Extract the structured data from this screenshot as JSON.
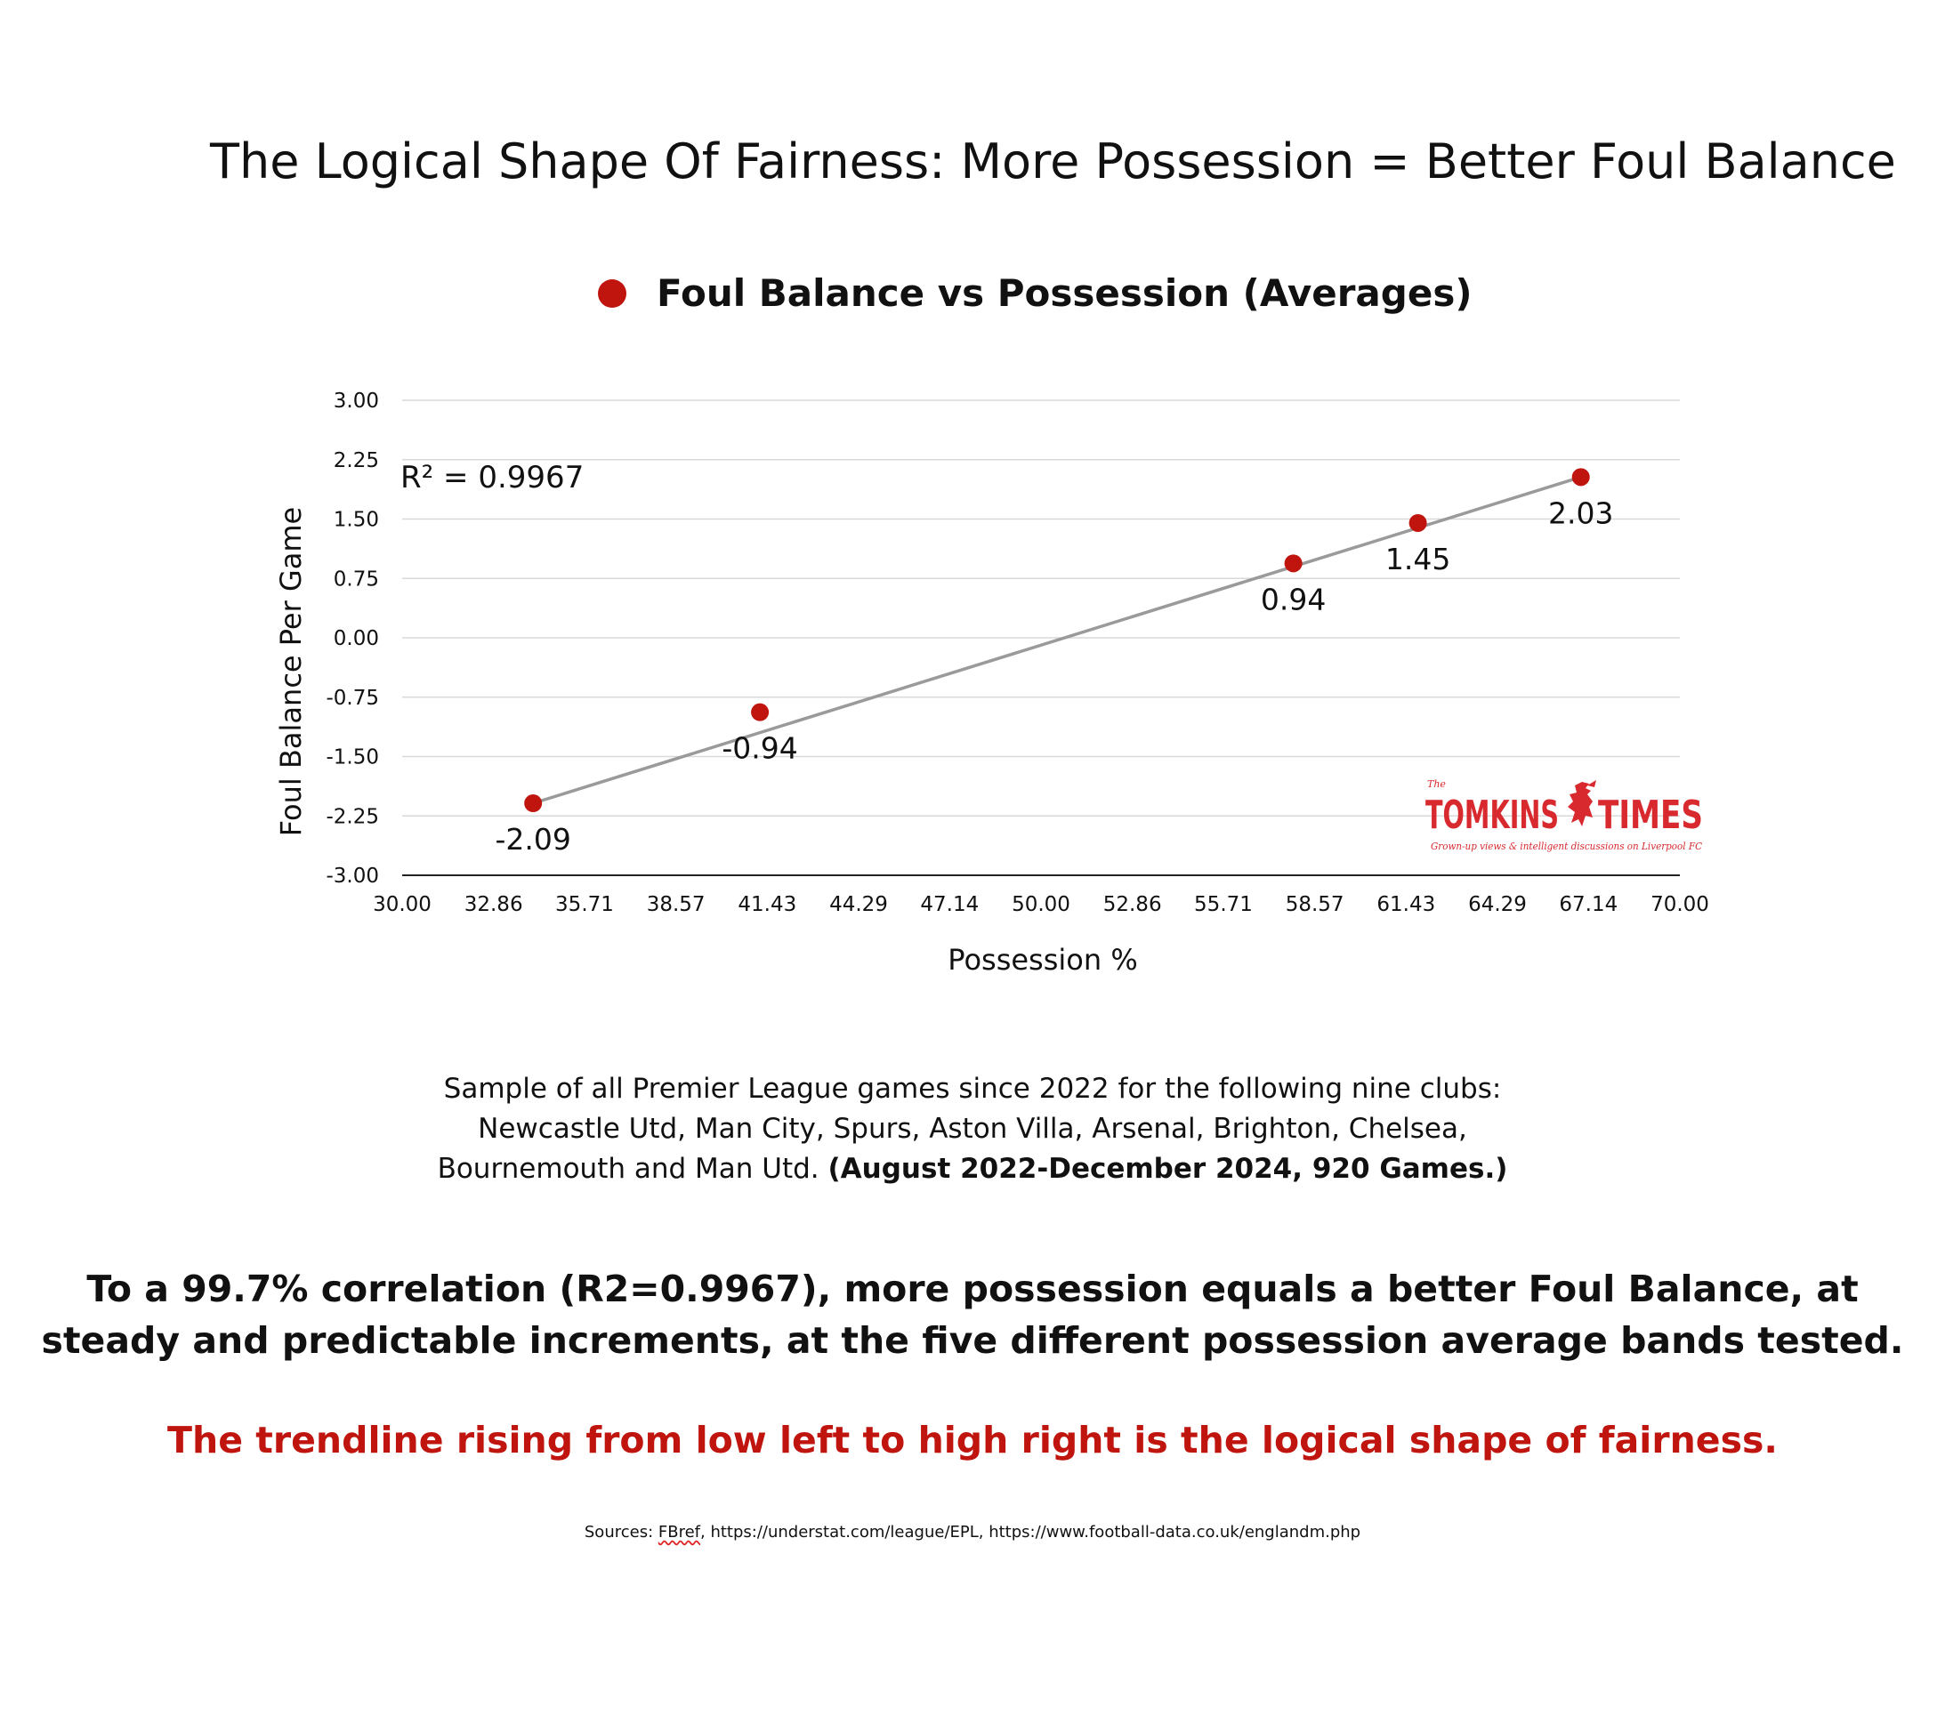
{
  "page": {
    "title": "The Logical Shape Of Fairness: More Possession = Better Foul Balance",
    "sample_line1": "Sample of all Premier League games since 2022 for the following nine clubs:",
    "sample_line2": "Newcastle Utd, Man City, Spurs, Aston Villa, Arsenal, Brighton, Chelsea,",
    "sample_line3": "Bournemouth and Man Utd.",
    "sample_bold": "(August 2022-December 2024, 920 Games.)",
    "conclusion_line1": "To a 99.7% correlation (R2=0.9967), more possession equals a better Foul Balance, at",
    "conclusion_line2": "steady and predictable increments, at the five different possession average bands tested.",
    "shape_statement": "The trendline rising from low left to high right is the logical shape of fairness.",
    "sources_prefix": "Sources: ",
    "sources_fbref": "FBref",
    "sources_rest": ", https://understat.com/league/EPL, https://www.football-data.co.uk/englandm.php"
  },
  "logo": {
    "the": "The",
    "word1": "TOMKINS",
    "word2": "TIMES",
    "tagline": "Grown-up views & intelligent discussions on Liverpool FC",
    "icon": "liverbird-icon",
    "color": "#d8292f"
  },
  "colors": {
    "marker": "#c0150f",
    "trendline": "#9a9a9a",
    "grid": "#d9d9d9",
    "axis": "#222222"
  },
  "chart_data": {
    "type": "scatter",
    "legend": "Foul Balance vs Possession (Averages)",
    "legend_position": "top",
    "xlabel": "Possession %",
    "ylabel": "Foul Balance Per Game",
    "xlim": [
      30,
      70
    ],
    "ylim": [
      -3,
      3
    ],
    "x_ticks": [
      "30.00",
      "32.86",
      "35.71",
      "38.57",
      "41.43",
      "44.29",
      "47.14",
      "50.00",
      "52.86",
      "55.71",
      "58.57",
      "61.43",
      "64.29",
      "67.14",
      "70.00"
    ],
    "y_ticks": [
      "3.00",
      "2.25",
      "1.50",
      "0.75",
      "0.00",
      "-0.75",
      "-1.50",
      "-2.25",
      "-3.00"
    ],
    "grid": true,
    "series": [
      {
        "name": "Foul Balance vs Possession (Averages)",
        "x": [
          34.1,
          41.2,
          57.9,
          61.8,
          66.9
        ],
        "y": [
          -2.09,
          -0.94,
          0.94,
          1.45,
          2.03
        ],
        "labels": [
          "-2.09",
          "-0.94",
          "0.94",
          "1.45",
          "2.03"
        ]
      }
    ],
    "trendline": {
      "type": "linear",
      "from": [
        34.1,
        -2.09
      ],
      "to": [
        66.9,
        2.03
      ]
    },
    "annotation": "R² = 0.9967"
  }
}
